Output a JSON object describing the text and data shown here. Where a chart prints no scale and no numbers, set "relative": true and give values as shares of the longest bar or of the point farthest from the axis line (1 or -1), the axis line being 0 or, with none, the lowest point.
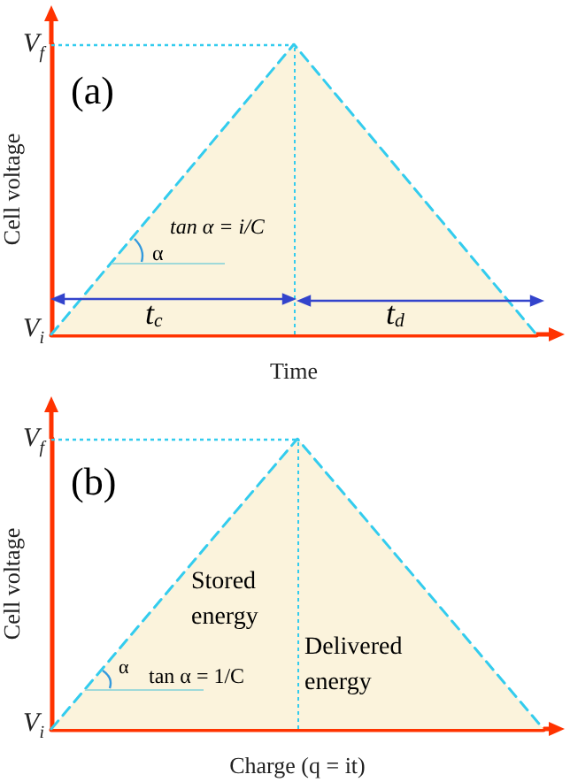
{
  "chart_data": [
    {
      "type": "area",
      "xlabel": "Time",
      "ylabel": "Cell voltage",
      "categories": [
        null,
        null,
        null
      ],
      "relative": true,
      "series": [
        {
          "color": "#33ccee",
          "values": [
            0,
            1,
            0
          ]
        }
      ],
      "line_style": "dashed",
      "marker": "none",
      "grid": false,
      "ref_lines": [
        {
          "axis": "y",
          "value": 1,
          "label": "V$_{f}$",
          "color": "#33ccee",
          "line_style": "dotted"
        }
      ],
      "annotations": [
        "(a)",
        "tan α = i/C",
        "α",
        "t$_{c}$",
        "t$_{d}$",
        "V$_{i}$"
      ]
    },
    {
      "type": "area",
      "xlabel": "Charge (q = it)",
      "ylabel": "Cell voltage",
      "categories": [
        null,
        null,
        null
      ],
      "relative": true,
      "series": [
        {
          "color": "#33ccee",
          "values": [
            0,
            1,
            0
          ]
        }
      ],
      "line_style": "dashed",
      "marker": "none",
      "grid": false,
      "ref_lines": [
        {
          "axis": "y",
          "value": 1,
          "label": "V$_{f}$",
          "color": "#33ccee",
          "line_style": "dotted"
        }
      ],
      "annotations": [
        "(b)",
        "Stored energy",
        "α",
        "tan α = 1/C",
        "Delivered energy",
        "V$_{i}$"
      ]
    }
  ]
}
